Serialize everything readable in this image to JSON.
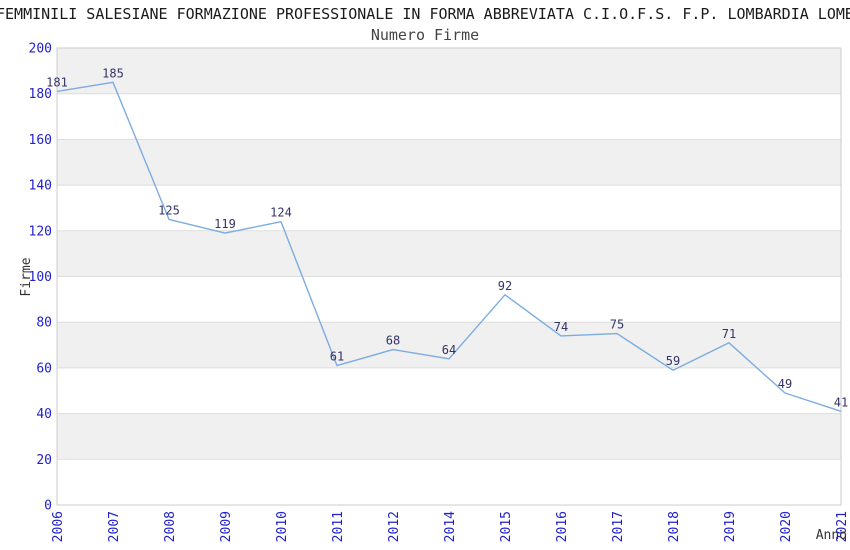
{
  "header": {
    "title": "FEMMINILI SALESIANE FORMAZIONE PROFESSIONALE IN FORMA ABBREVIATA C.I.O.F.S. F.P. LOMBARDIA LOMBARDIA",
    "subtitle": "Numero Firme"
  },
  "chart_data": {
    "type": "line",
    "title": "FEMMINILI SALESIANE FORMAZIONE PROFESSIONALE IN FORMA ABBREVIATA C.I.O.F.S. F.P. LOMBARDIA LOMBARDIA",
    "subtitle": "Numero Firme",
    "categories": [
      "2006",
      "2007",
      "2008",
      "2009",
      "2010",
      "2011",
      "2012",
      "2014",
      "2015",
      "2016",
      "2017",
      "2018",
      "2019",
      "2020",
      "2021"
    ],
    "values": [
      181,
      185,
      125,
      119,
      124,
      61,
      68,
      64,
      92,
      74,
      75,
      59,
      71,
      49,
      41
    ],
    "point_labels": [
      "181",
      "185",
      "125",
      "119",
      "124",
      "61",
      "68",
      "64",
      "92",
      "74",
      "75",
      "59",
      "71",
      "49",
      "41"
    ],
    "xlabel": "Anno",
    "ylabel": "Firme",
    "ylim": [
      0,
      200
    ],
    "ytick_step": 20,
    "ytick_labels": [
      "0",
      "20",
      "40",
      "60",
      "80",
      "100",
      "120",
      "140",
      "160",
      "180",
      "200"
    ],
    "grid": "horizontal-bands-alternating",
    "legend_position": "none",
    "colors": {
      "line": "#7CACE0",
      "axis_tick_labels": "#2222CC",
      "point_labels": "#333366",
      "band_gray": "#F0F0F0",
      "band_white": "#FFFFFF",
      "plot_border": "#CCCCCC",
      "gridline": "#DDDDDD",
      "title_text": "#1A1A1A",
      "subtitle_text": "#444444"
    }
  }
}
